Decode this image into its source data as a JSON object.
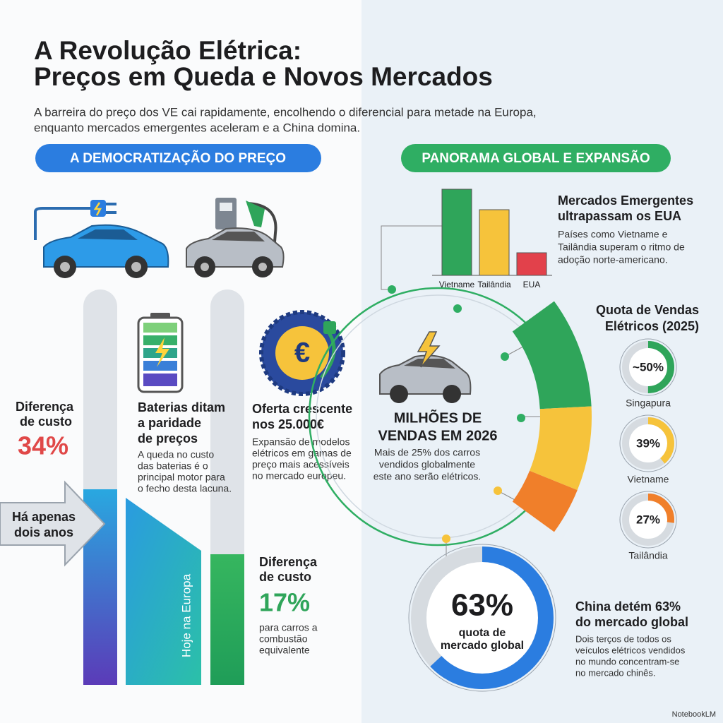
{
  "header": {
    "title_lines": [
      "A Revolução Elétrica:",
      "Preços em Queda e Novos Mercados"
    ],
    "subtitle_lines": [
      "A barreira do preço dos VE cai rapidamente, encolhendo o diferencial para metade na Europa,",
      "enquanto mercados emergentes aceleram e a China domina."
    ]
  },
  "left": {
    "heading": "A DEMOCRATIZAÇÃO DO PREÇO",
    "gap_then": {
      "title_lines": [
        "Diferença",
        "de custo"
      ],
      "figure": "34%"
    },
    "arrow_lines": [
      "Há apenas",
      "dois anos"
    ],
    "batteries": {
      "title_lines": [
        "Baterias ditam",
        "a paridade",
        "de preços"
      ],
      "text_lines": [
        "A queda no custo",
        "das baterias é o",
        "principal motor para",
        "o fecho desta lacuna."
      ]
    },
    "today_label": "Hoje na Europa",
    "offer": {
      "title_lines": [
        "Oferta crescente",
        "nos 25.000€"
      ],
      "text_lines": [
        "Expansão de modelos",
        "elétricos em gamas de",
        "preço mais acessíveis",
        "no mercado europeu."
      ]
    },
    "gap_now": {
      "title_lines": [
        "Diferença",
        "de custo"
      ],
      "figure": "17%",
      "text_lines": [
        "para carros a",
        "combustão",
        "equivalente"
      ]
    }
  },
  "right": {
    "heading": "PANORAMA GLOBAL E EXPANSÃO",
    "emerging_chart": {
      "type": "bar",
      "categories": [
        "Vietname",
        "Tailândia",
        "EUA"
      ],
      "values": [
        122,
        93,
        32
      ],
      "colors": [
        "#2fa55a",
        "#f6c33b",
        "#e2414b"
      ]
    },
    "emerging": {
      "title_lines": [
        "Mercados Emergentes",
        "ultrapassam os EUA"
      ],
      "text_lines": [
        "Países como Vietname e",
        "Tailândia superam o ritmo de",
        "adoção norte-americano."
      ]
    },
    "sales": {
      "title_lines": [
        "MILHÕES DE",
        "VENDAS EM 2026"
      ],
      "text_lines": [
        "Mais de 25% dos carros",
        "vendidos globalmente",
        "este ano serão elétricos."
      ]
    },
    "ev_quota": {
      "title_lines": [
        "Quota de Vendas",
        "Elétricos (2025)"
      ],
      "items": [
        {
          "value": 50,
          "label": "~50%",
          "country": "Singapura",
          "color": "#2fa55a"
        },
        {
          "value": 39,
          "label": "39%",
          "country": "Vietname",
          "color": "#f6c33b"
        },
        {
          "value": 27,
          "label": "27%",
          "country": "Tailândia",
          "color": "#f07f2a"
        }
      ]
    },
    "china": {
      "value": 63,
      "label": "63%",
      "caption_lines": [
        "quota de",
        "mercado global"
      ],
      "color": "#2b7de0",
      "title_lines": [
        "China detém 63%",
        "do mercado global"
      ],
      "text_lines": [
        "Dois terços de todos os",
        "veículos elétricos vendidos",
        "no mundo concentram-se",
        "no mercado chinês."
      ]
    }
  },
  "footer": {
    "brand": "NotebookLM"
  }
}
